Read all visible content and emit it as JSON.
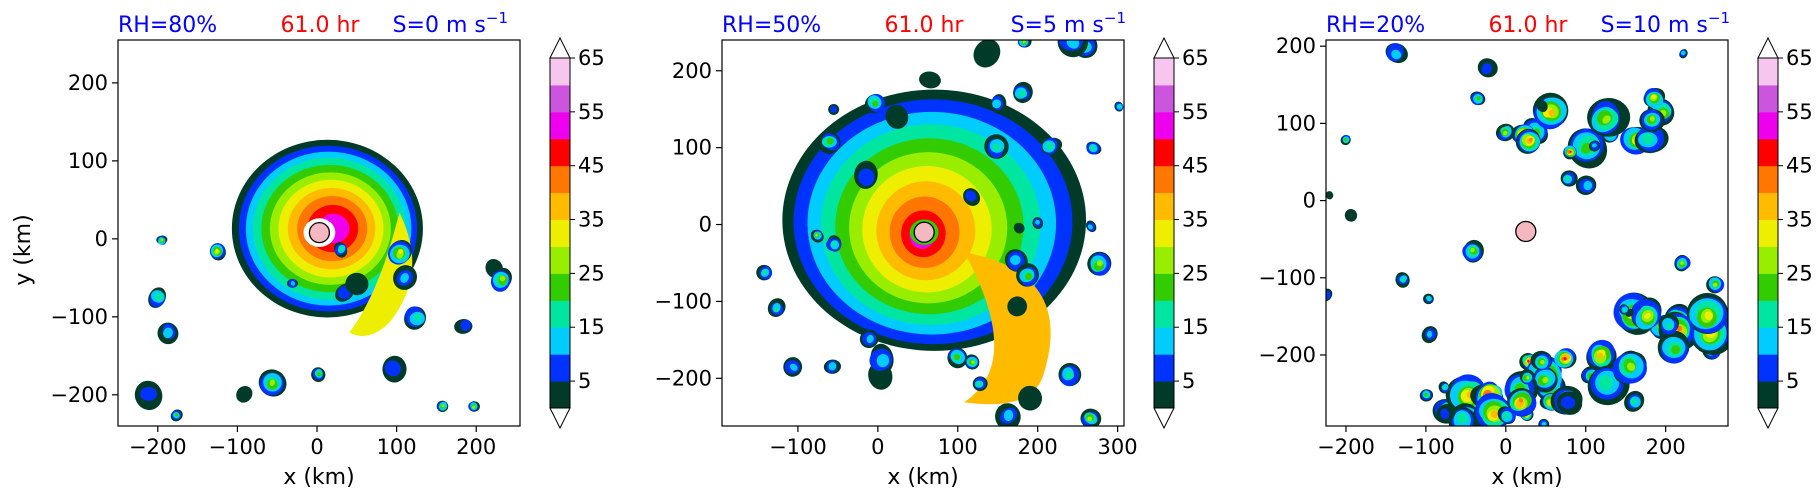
{
  "chart_data": [
    {
      "type": "heatmap",
      "title_left": "RH=80%",
      "title_center": "61.0 hr",
      "title_right": "S=0 m s",
      "title_right_sup": "−1",
      "xlabel": "x (km)",
      "ylabel": "y (km)",
      "xlim": [
        -250,
        255
      ],
      "ylim": [
        -240,
        255
      ],
      "xticks": [
        -200,
        -100,
        0,
        100,
        200
      ],
      "xtick_labels": [
        "−200",
        "−100",
        "0",
        "100",
        "200"
      ],
      "yticks": [
        -200,
        -100,
        0,
        100,
        200
      ],
      "ytick_labels": [
        "−200",
        "−100",
        "0",
        "100",
        "200"
      ],
      "center": [
        3,
        8
      ],
      "colorbar": {
        "levels": [
          5,
          15,
          25,
          35,
          45,
          55,
          65
        ],
        "tick_labels": [
          "5",
          "15",
          "25",
          "35",
          "45",
          "55",
          "65"
        ],
        "extend": "both"
      }
    },
    {
      "type": "heatmap",
      "title_left": "RH=50%",
      "title_center": "61.0 hr",
      "title_right": "S=5 m s",
      "title_right_sup": "−1",
      "xlabel": "x (km)",
      "ylabel": "",
      "xlim": [
        -195,
        308
      ],
      "ylim": [
        -262,
        240
      ],
      "xticks": [
        -100,
        0,
        100,
        200,
        300
      ],
      "xtick_labels": [
        "−100",
        "0",
        "100",
        "200",
        "300"
      ],
      "yticks": [
        -200,
        -100,
        0,
        100,
        200
      ],
      "ytick_labels": [
        "−200",
        "−100",
        "0",
        "100",
        "200"
      ],
      "center": [
        58,
        -10
      ],
      "colorbar": {
        "levels": [
          5,
          15,
          25,
          35,
          45,
          55,
          65
        ],
        "tick_labels": [
          "5",
          "15",
          "25",
          "35",
          "45",
          "55",
          "65"
        ],
        "extend": "both"
      }
    },
    {
      "type": "heatmap",
      "title_left": "RH=20%",
      "title_center": "61.0 hr",
      "title_right": "S=10 m s",
      "title_right_sup": "−1",
      "xlabel": "x (km)",
      "ylabel": "",
      "xlim": [
        -225,
        278
      ],
      "ylim": [
        -292,
        208
      ],
      "xticks": [
        -200,
        -100,
        0,
        100,
        200
      ],
      "xtick_labels": [
        "−200",
        "−100",
        "0",
        "100",
        "200"
      ],
      "yticks": [
        -200,
        -100,
        0,
        100,
        200
      ],
      "ytick_labels": [
        "−200",
        "−100",
        "0",
        "100",
        "200"
      ],
      "center": [
        25,
        -40
      ],
      "colorbar": {
        "levels": [
          5,
          15,
          25,
          35,
          45,
          55,
          65
        ],
        "tick_labels": [
          "5",
          "15",
          "25",
          "35",
          "45",
          "55",
          "65"
        ],
        "extend": "both"
      }
    }
  ],
  "colors": {
    "title_blue": "#0000ff",
    "title_red": "#ff0000",
    "center_marker": "#f6b8c0",
    "levels": [
      "#003b2a",
      "#0033ff",
      "#00ccff",
      "#00e6a0",
      "#33cc00",
      "#99ee00",
      "#eeee00",
      "#ffbb00",
      "#ff7700",
      "#ff0000",
      "#ee00ee",
      "#cc55dd",
      "#f6c6ee"
    ]
  }
}
